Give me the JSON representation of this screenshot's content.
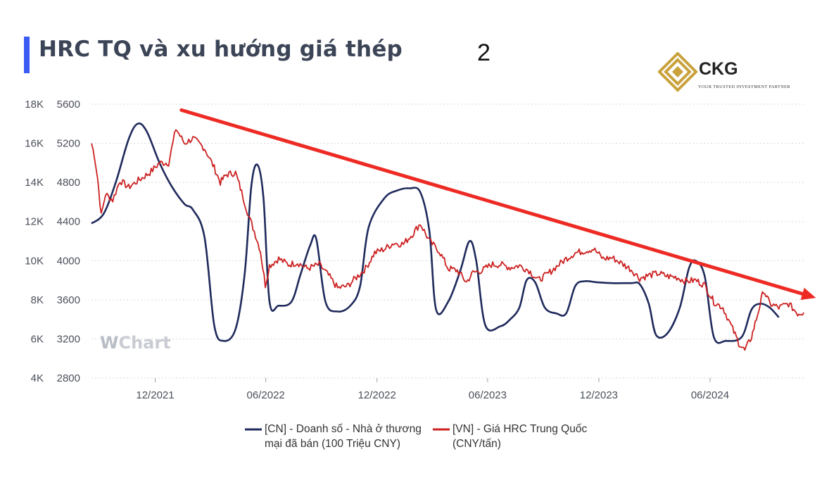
{
  "header": {
    "title": "HRC TQ và xu hướng giá thép",
    "page_number": "2"
  },
  "logo": {
    "name": "CKG",
    "tagline": "YOUR TRUSTED INVESTMENT PARTNER",
    "color": "#c9a23c"
  },
  "watermark": {
    "prefix": "W",
    "text": "Chart"
  },
  "colors": {
    "accent_bar": "#3b5bf5",
    "series_cn": "#1f2a5c",
    "series_vn": "#cc1f1f",
    "trend_arrow": "#ee2a24",
    "grid": "#d6d9df"
  },
  "chart_data": {
    "type": "line",
    "title": "HRC TQ và xu hướng giá thép",
    "xlabel": "",
    "ylabel": "",
    "x_ticks": [
      "12/2021",
      "06/2022",
      "12/2022",
      "06/2023",
      "12/2023",
      "06/2024"
    ],
    "y_left": {
      "ticks": [
        "4K",
        "6K",
        "8K",
        "10K",
        "12K",
        "14K",
        "16K",
        "18K"
      ],
      "lim": [
        4000,
        18000
      ]
    },
    "y_right": {
      "ticks": [
        "2800",
        "3200",
        "3600",
        "4000",
        "4400",
        "4800",
        "5200",
        "5600"
      ],
      "lim": [
        2800,
        5600
      ]
    },
    "grid": true,
    "legend_position": "bottom",
    "series": [
      {
        "name": "[CN] - Doanh số - Nhà ở thương mại đã bán (100 Triệu CNY)",
        "legend_lines": [
          "[CN] - Doanh số - Nhà ở thương",
          "mại đã bán (100 Triệu CNY)"
        ],
        "axis": "left",
        "points": [
          [
            "2021-09-15",
            11900
          ],
          [
            "2021-10-05",
            12400
          ],
          [
            "2021-10-25",
            14000
          ],
          [
            "2021-11-15",
            16200
          ],
          [
            "2021-11-30",
            17000
          ],
          [
            "2021-12-15",
            16600
          ],
          [
            "2022-01-05",
            15000
          ],
          [
            "2022-01-25",
            13800
          ],
          [
            "2022-02-15",
            12900
          ],
          [
            "2022-03-01",
            12600
          ],
          [
            "2022-03-20",
            11200
          ],
          [
            "2022-04-05",
            6700
          ],
          [
            "2022-04-20",
            5900
          ],
          [
            "2022-05-10",
            6500
          ],
          [
            "2022-05-25",
            9300
          ],
          [
            "2022-06-05",
            13800
          ],
          [
            "2022-06-15",
            14900
          ],
          [
            "2022-06-25",
            13200
          ],
          [
            "2022-07-05",
            7900
          ],
          [
            "2022-07-20",
            7700
          ],
          [
            "2022-08-10",
            7900
          ],
          [
            "2022-08-25",
            9300
          ],
          [
            "2022-09-10",
            10800
          ],
          [
            "2022-09-20",
            11100
          ],
          [
            "2022-10-05",
            7900
          ],
          [
            "2022-10-25",
            7400
          ],
          [
            "2022-11-15",
            7700
          ],
          [
            "2022-12-01",
            8700
          ],
          [
            "2022-12-15",
            11700
          ],
          [
            "2023-01-10",
            13200
          ],
          [
            "2023-02-01",
            13600
          ],
          [
            "2023-02-20",
            13700
          ],
          [
            "2023-03-10",
            13500
          ],
          [
            "2023-03-25",
            11500
          ],
          [
            "2023-04-05",
            7500
          ],
          [
            "2023-04-25",
            7900
          ],
          [
            "2023-05-15",
            9500
          ],
          [
            "2023-05-30",
            11000
          ],
          [
            "2023-06-10",
            10000
          ],
          [
            "2023-06-25",
            6700
          ],
          [
            "2023-07-20",
            6650
          ],
          [
            "2023-08-05",
            7000
          ],
          [
            "2023-08-20",
            7600
          ],
          [
            "2023-09-01",
            9000
          ],
          [
            "2023-09-15",
            8900
          ],
          [
            "2023-10-01",
            7600
          ],
          [
            "2023-10-20",
            7300
          ],
          [
            "2023-11-05",
            7300
          ],
          [
            "2023-11-20",
            8700
          ],
          [
            "2023-12-05",
            8950
          ],
          [
            "2023-12-25",
            8900
          ],
          [
            "2024-01-20",
            8850
          ],
          [
            "2024-02-20",
            8850
          ],
          [
            "2024-03-05",
            8800
          ],
          [
            "2024-03-20",
            7800
          ],
          [
            "2024-04-01",
            6200
          ],
          [
            "2024-04-20",
            6300
          ],
          [
            "2024-05-10",
            7600
          ],
          [
            "2024-05-25",
            9600
          ],
          [
            "2024-06-05",
            10000
          ],
          [
            "2024-06-20",
            9200
          ],
          [
            "2024-07-05",
            6100
          ],
          [
            "2024-07-25",
            5900
          ],
          [
            "2024-08-20",
            6100
          ],
          [
            "2024-09-05",
            7500
          ],
          [
            "2024-09-20",
            7800
          ],
          [
            "2024-10-05",
            7600
          ],
          [
            "2024-10-20",
            7100
          ]
        ]
      },
      {
        "name": "[VN] - Giá HRC Trung Quốc (CNY/tấn)",
        "legend_lines": [
          "[VN] - Giá HRC Trung Quốc",
          "(CNY/tấn)"
        ],
        "axis": "right",
        "points": [
          [
            "2021-09-15",
            5200
          ],
          [
            "2021-09-20",
            5070
          ],
          [
            "2021-09-25",
            4850
          ],
          [
            "2021-10-01",
            4460
          ],
          [
            "2021-10-08",
            4680
          ],
          [
            "2021-10-20",
            4620
          ],
          [
            "2021-11-01",
            4820
          ],
          [
            "2021-11-15",
            4750
          ],
          [
            "2021-12-01",
            4820
          ],
          [
            "2021-12-20",
            4900
          ],
          [
            "2022-01-05",
            5000
          ],
          [
            "2022-01-20",
            5000
          ],
          [
            "2022-02-01",
            5350
          ],
          [
            "2022-02-15",
            5200
          ],
          [
            "2022-03-01",
            5250
          ],
          [
            "2022-03-20",
            5150
          ],
          [
            "2022-04-05",
            4950
          ],
          [
            "2022-04-15",
            4800
          ],
          [
            "2022-04-25",
            4880
          ],
          [
            "2022-05-10",
            4900
          ],
          [
            "2022-05-20",
            4700
          ],
          [
            "2022-06-01",
            4450
          ],
          [
            "2022-06-10",
            4300
          ],
          [
            "2022-06-20",
            4100
          ],
          [
            "2022-06-28",
            3750
          ],
          [
            "2022-07-05",
            3950
          ],
          [
            "2022-07-20",
            4020
          ],
          [
            "2022-08-05",
            3960
          ],
          [
            "2022-08-20",
            3980
          ],
          [
            "2022-09-05",
            3920
          ],
          [
            "2022-09-25",
            3960
          ],
          [
            "2022-10-10",
            3850
          ],
          [
            "2022-10-25",
            3720
          ],
          [
            "2022-11-10",
            3740
          ],
          [
            "2022-11-25",
            3830
          ],
          [
            "2022-12-10",
            3920
          ],
          [
            "2022-12-25",
            4080
          ],
          [
            "2023-01-10",
            4120
          ],
          [
            "2023-01-25",
            4180
          ],
          [
            "2023-02-10",
            4170
          ],
          [
            "2023-02-25",
            4270
          ],
          [
            "2023-03-10",
            4380
          ],
          [
            "2023-03-25",
            4200
          ],
          [
            "2023-04-10",
            4100
          ],
          [
            "2023-04-25",
            3920
          ],
          [
            "2023-05-10",
            3900
          ],
          [
            "2023-05-25",
            3780
          ],
          [
            "2023-06-05",
            3880
          ],
          [
            "2023-06-20",
            3900
          ],
          [
            "2023-07-05",
            3960
          ],
          [
            "2023-07-20",
            3960
          ],
          [
            "2023-08-05",
            3930
          ],
          [
            "2023-08-20",
            3950
          ],
          [
            "2023-09-05",
            3900
          ],
          [
            "2023-09-20",
            3800
          ],
          [
            "2023-10-05",
            3860
          ],
          [
            "2023-10-20",
            3940
          ],
          [
            "2023-11-05",
            4020
          ],
          [
            "2023-11-20",
            4080
          ],
          [
            "2023-12-05",
            4100
          ],
          [
            "2023-12-20",
            4120
          ],
          [
            "2024-01-05",
            4020
          ],
          [
            "2024-01-20",
            4030
          ],
          [
            "2024-02-05",
            3970
          ],
          [
            "2024-02-20",
            3910
          ],
          [
            "2024-03-05",
            3820
          ],
          [
            "2024-03-20",
            3850
          ],
          [
            "2024-04-05",
            3870
          ],
          [
            "2024-04-20",
            3840
          ],
          [
            "2024-05-05",
            3830
          ],
          [
            "2024-05-20",
            3790
          ],
          [
            "2024-06-05",
            3800
          ],
          [
            "2024-06-20",
            3750
          ],
          [
            "2024-07-05",
            3580
          ],
          [
            "2024-07-20",
            3520
          ],
          [
            "2024-08-05",
            3300
          ],
          [
            "2024-08-15",
            3160
          ],
          [
            "2024-08-25",
            3080
          ],
          [
            "2024-09-05",
            3220
          ],
          [
            "2024-09-15",
            3450
          ],
          [
            "2024-09-25",
            3700
          ],
          [
            "2024-10-05",
            3560
          ],
          [
            "2024-10-20",
            3520
          ],
          [
            "2024-11-05",
            3560
          ],
          [
            "2024-11-20",
            3460
          ],
          [
            "2024-11-30",
            3470
          ]
        ]
      }
    ],
    "annotations": [
      {
        "type": "trend_arrow",
        "start": [
          "2022-02-10",
          5540
        ],
        "end": [
          "2024-12-20",
          3620
        ]
      }
    ]
  }
}
